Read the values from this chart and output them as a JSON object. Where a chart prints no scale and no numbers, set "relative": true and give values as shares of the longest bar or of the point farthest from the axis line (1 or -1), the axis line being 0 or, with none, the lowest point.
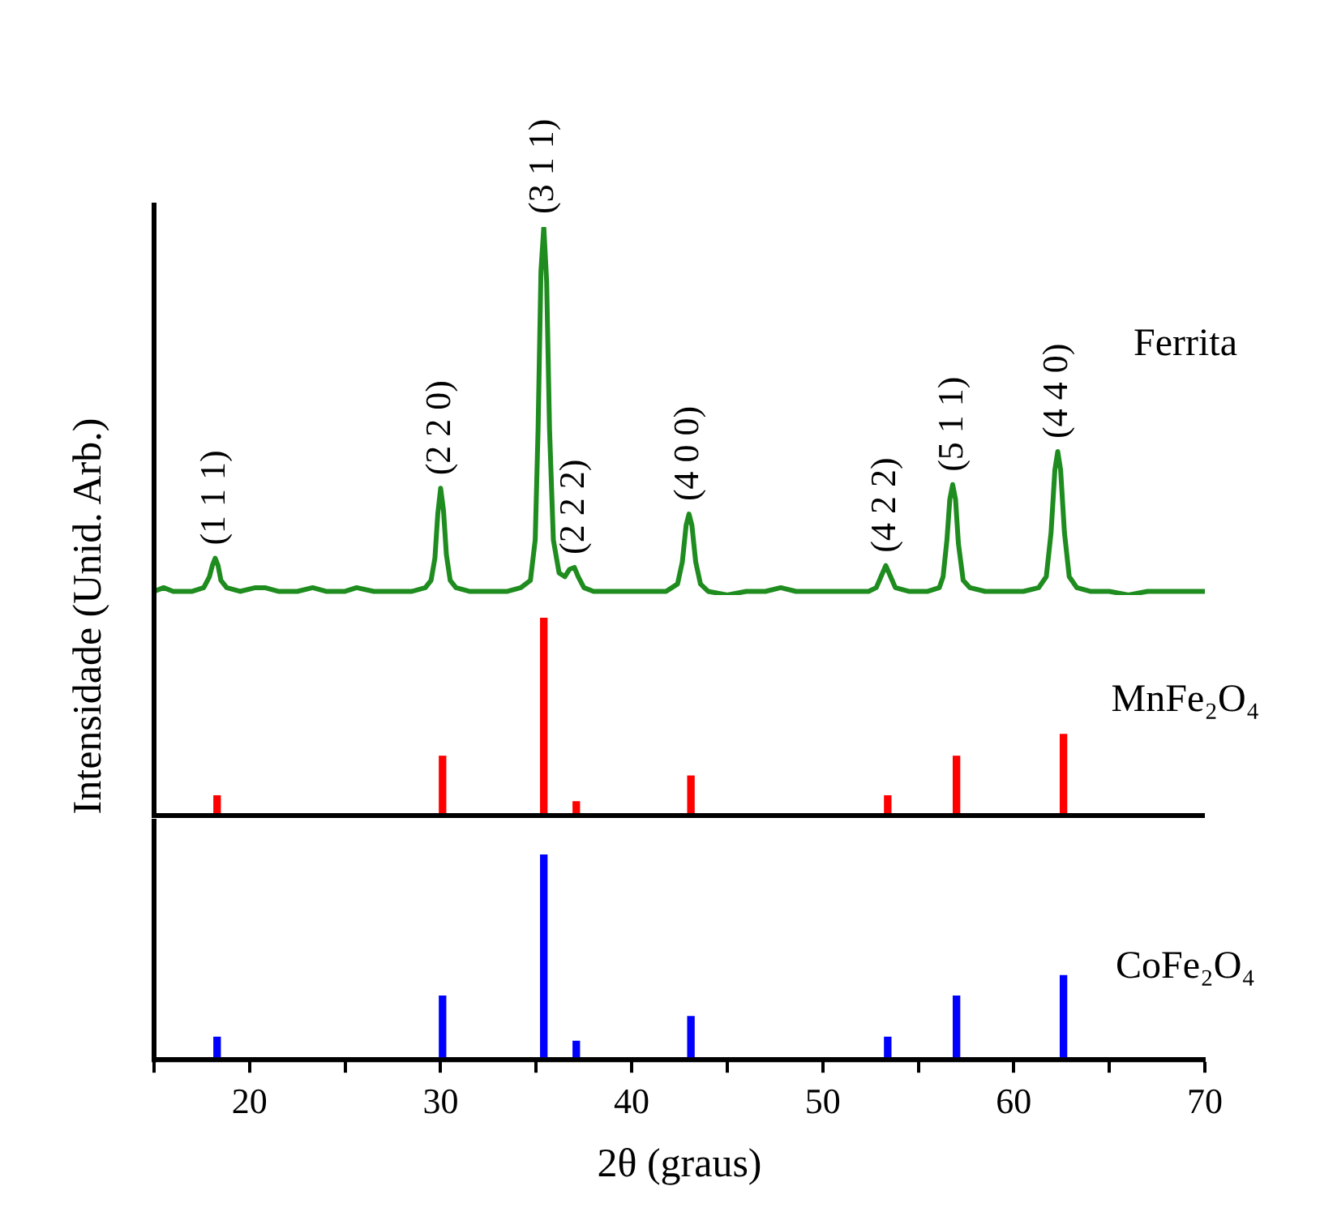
{
  "chart_data": [
    {
      "type": "line",
      "relative": true,
      "xlim": [
        15,
        70
      ],
      "tick_labels": false,
      "legend": false,
      "series": [
        {
          "name": "Ferrita",
          "color": "#1e8c1e",
          "x": [
            15.0,
            15.5,
            16,
            16.5,
            17,
            17.6,
            17.9,
            18.05,
            18.2,
            18.35,
            18.5,
            18.8,
            19.5,
            20.3,
            20.8,
            21.5,
            22.5,
            23.3,
            24,
            25,
            25.6,
            26.5,
            27.5,
            28.5,
            29.2,
            29.5,
            29.7,
            29.85,
            30.0,
            30.15,
            30.3,
            30.5,
            30.8,
            31.5,
            32.5,
            33.5,
            34.2,
            34.7,
            34.95,
            35.1,
            35.25,
            35.4,
            35.55,
            35.7,
            35.9,
            36.2,
            36.5,
            36.75,
            37.0,
            37.2,
            37.5,
            38,
            39,
            40,
            41,
            41.8,
            42.4,
            42.65,
            42.85,
            43.0,
            43.15,
            43.35,
            43.6,
            44,
            45,
            46,
            47,
            47.8,
            48.6,
            49.5,
            50.5,
            51.5,
            52.4,
            52.8,
            53.05,
            53.3,
            53.55,
            53.8,
            54.5,
            55.5,
            56.1,
            56.3,
            56.5,
            56.65,
            56.8,
            56.95,
            57.1,
            57.35,
            57.7,
            58.5,
            59.5,
            60.5,
            61.3,
            61.7,
            61.95,
            62.15,
            62.3,
            62.45,
            62.65,
            62.9,
            63.3,
            64,
            65,
            66,
            67,
            68,
            69,
            70
          ],
          "values": [
            0.01,
            0.02,
            0.01,
            0.01,
            0.01,
            0.02,
            0.05,
            0.08,
            0.1,
            0.08,
            0.04,
            0.02,
            0.01,
            0.02,
            0.02,
            0.01,
            0.01,
            0.02,
            0.01,
            0.01,
            0.02,
            0.01,
            0.01,
            0.01,
            0.02,
            0.04,
            0.1,
            0.22,
            0.29,
            0.23,
            0.11,
            0.04,
            0.02,
            0.01,
            0.01,
            0.01,
            0.02,
            0.04,
            0.15,
            0.45,
            0.88,
            1.0,
            0.85,
            0.45,
            0.15,
            0.06,
            0.05,
            0.07,
            0.075,
            0.05,
            0.02,
            0.01,
            0.01,
            0.01,
            0.01,
            0.01,
            0.03,
            0.09,
            0.19,
            0.22,
            0.19,
            0.09,
            0.03,
            0.01,
            0.0,
            0.01,
            0.01,
            0.02,
            0.01,
            0.01,
            0.01,
            0.01,
            0.01,
            0.02,
            0.05,
            0.08,
            0.05,
            0.02,
            0.01,
            0.01,
            0.02,
            0.05,
            0.15,
            0.26,
            0.3,
            0.26,
            0.14,
            0.04,
            0.02,
            0.01,
            0.01,
            0.01,
            0.02,
            0.05,
            0.17,
            0.34,
            0.39,
            0.34,
            0.17,
            0.05,
            0.02,
            0.01,
            0.01,
            0.0,
            0.01,
            0.01,
            0.01,
            0.01
          ]
        }
      ],
      "annotations": [
        {
          "text": "(1 1 1)",
          "x": 18.2,
          "y": 0.1
        },
        {
          "text": "(2 2 0)",
          "x": 30.0,
          "y": 0.29
        },
        {
          "text": "(3 1 1)",
          "x": 35.4,
          "y": 1.0
        },
        {
          "text": "(2 2 2)",
          "x": 37.0,
          "y": 0.075
        },
        {
          "text": "(4 0 0)",
          "x": 43.0,
          "y": 0.22
        },
        {
          "text": "(4 2 2)",
          "x": 53.3,
          "y": 0.08
        },
        {
          "text": "(5 1 1)",
          "x": 56.8,
          "y": 0.3
        },
        {
          "text": "(4 4 0)",
          "x": 62.3,
          "y": 0.39
        }
      ]
    },
    {
      "type": "bar",
      "relative": true,
      "ylabel": "Intensidade (Unid. Arb.)",
      "xlim": [
        15,
        70
      ],
      "tick_labels": false,
      "legend": false,
      "x": [
        18.3,
        30.1,
        35.4,
        37.1,
        43.1,
        53.4,
        57.0,
        62.6
      ],
      "series": [
        {
          "name": "MnFe₂O₄",
          "color": "#ff0000",
          "values": [
            0.1,
            0.3,
            1.0,
            0.07,
            0.2,
            0.1,
            0.3,
            0.41
          ]
        }
      ]
    },
    {
      "type": "bar",
      "relative": true,
      "xlabel": "2θ (graus)",
      "xlim": [
        15,
        70
      ],
      "xticks": [
        {
          "value": 15,
          "label": null
        },
        20,
        {
          "value": 25,
          "label": null
        },
        30,
        {
          "value": 35,
          "label": null
        },
        40,
        {
          "value": 45,
          "label": null
        },
        50,
        {
          "value": 55,
          "label": null
        },
        60,
        {
          "value": 65,
          "label": null
        },
        70
      ],
      "tick_labels": "x",
      "legend": false,
      "x": [
        18.3,
        30.1,
        35.4,
        37.1,
        43.1,
        53.4,
        57.0,
        62.6
      ],
      "series": [
        {
          "name": "CoFe₂O₄",
          "color": "#0000ff",
          "values": [
            0.11,
            0.31,
            1.0,
            0.09,
            0.21,
            0.11,
            0.31,
            0.41
          ]
        }
      ]
    }
  ]
}
